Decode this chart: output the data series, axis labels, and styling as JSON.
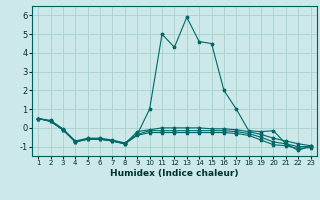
{
  "xlabel": "Humidex (Indice chaleur)",
  "background_color": "#cce8e8",
  "grid_color": "#a8d0d0",
  "line_color": "#006868",
  "xlim": [
    0.5,
    23.5
  ],
  "ylim": [
    -1.5,
    6.5
  ],
  "yticks": [
    -1,
    0,
    1,
    2,
    3,
    4,
    5,
    6
  ],
  "xticks": [
    1,
    2,
    3,
    4,
    5,
    6,
    7,
    8,
    9,
    10,
    11,
    12,
    13,
    14,
    15,
    16,
    17,
    18,
    19,
    20,
    21,
    22,
    23
  ],
  "series": [
    {
      "x": [
        1,
        2,
        3,
        4,
        5,
        6,
        7,
        8,
        9,
        10,
        11,
        12,
        13,
        14,
        15,
        16,
        17,
        18,
        19,
        20,
        21,
        22,
        23
      ],
      "y": [
        0.5,
        0.4,
        -0.05,
        -0.7,
        -0.55,
        -0.55,
        -0.65,
        -0.8,
        -0.35,
        1.0,
        5.0,
        4.3,
        5.9,
        4.6,
        4.5,
        2.0,
        1.0,
        -0.15,
        -0.2,
        -0.15,
        -0.85,
        -1.2,
        -0.95
      ]
    },
    {
      "x": [
        1,
        2,
        3,
        4,
        5,
        6,
        7,
        8,
        9,
        10,
        11,
        12,
        13,
        14,
        15,
        16,
        17,
        18,
        19,
        20,
        21,
        22,
        23
      ],
      "y": [
        0.5,
        0.35,
        -0.1,
        -0.75,
        -0.6,
        -0.6,
        -0.7,
        -0.85,
        -0.2,
        -0.1,
        0.0,
        0.0,
        0.0,
        0.0,
        -0.05,
        -0.05,
        -0.1,
        -0.2,
        -0.35,
        -0.55,
        -0.7,
        -0.85,
        -0.95
      ]
    },
    {
      "x": [
        1,
        2,
        3,
        4,
        5,
        6,
        7,
        8,
        9,
        10,
        11,
        12,
        13,
        14,
        15,
        16,
        17,
        18,
        19,
        20,
        21,
        22,
        23
      ],
      "y": [
        0.5,
        0.35,
        -0.1,
        -0.75,
        -0.6,
        -0.6,
        -0.7,
        -0.85,
        -0.35,
        -0.15,
        -0.15,
        -0.15,
        -0.15,
        -0.15,
        -0.15,
        -0.15,
        -0.2,
        -0.3,
        -0.5,
        -0.75,
        -0.85,
        -1.0,
        -1.0
      ]
    },
    {
      "x": [
        1,
        2,
        3,
        4,
        5,
        6,
        7,
        8,
        9,
        10,
        11,
        12,
        13,
        14,
        15,
        16,
        17,
        18,
        19,
        20,
        21,
        22,
        23
      ],
      "y": [
        0.5,
        0.35,
        -0.1,
        -0.75,
        -0.6,
        -0.6,
        -0.7,
        -0.85,
        -0.4,
        -0.25,
        -0.25,
        -0.25,
        -0.25,
        -0.25,
        -0.25,
        -0.25,
        -0.3,
        -0.4,
        -0.65,
        -0.9,
        -0.95,
        -1.1,
        -1.05
      ]
    }
  ]
}
